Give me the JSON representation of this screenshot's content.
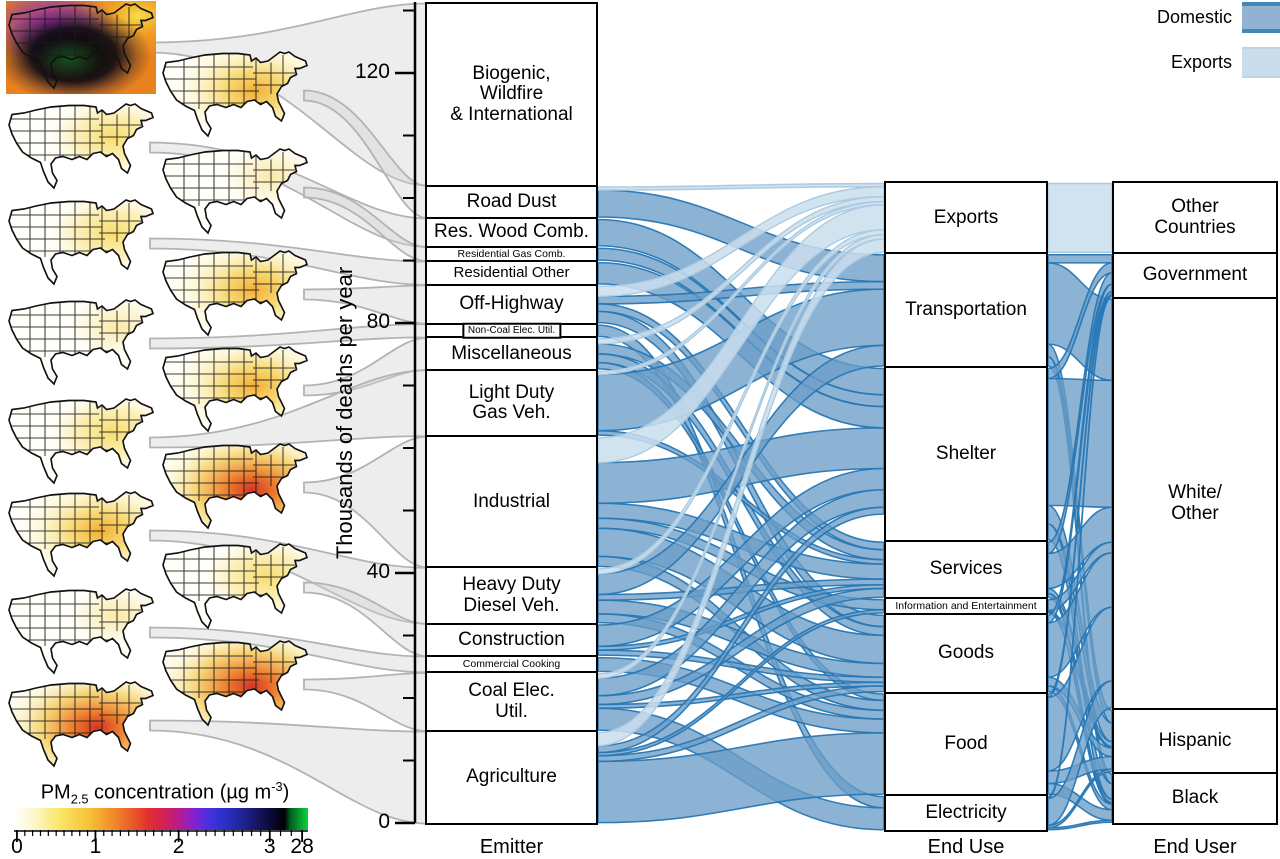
{
  "legend": {
    "items": [
      {
        "label": "Domestic",
        "type": "domestic",
        "color": "#6B9EC8"
      },
      {
        "label": "Exports",
        "type": "exports",
        "color": "#CBDEED"
      }
    ]
  },
  "axis": {
    "label": "Thousands of deaths per year",
    "major_ticks": [
      0,
      40,
      80,
      120
    ],
    "minor_step": 10,
    "max": 130
  },
  "column_labels": {
    "emitter": "Emitter",
    "end_use": "End Use",
    "end_user": "End User"
  },
  "colorbar": {
    "label_plain": "PM2.5 concentration (µg m-3)",
    "label_parts": {
      "prefix": "PM",
      "sub": "2.5",
      "mid": " concentration (µg m",
      "sup": "-3",
      "suffix": ")"
    },
    "ticks": [
      {
        "label": "0",
        "pct": 1
      },
      {
        "label": "1",
        "pct": 27.7
      },
      {
        "label": "2",
        "pct": 56
      },
      {
        "label": "3",
        "pct": 87
      },
      {
        "label": "28",
        "pct": 98
      }
    ]
  },
  "chart_data": {
    "type": "sankey",
    "units": "thousands of deaths per year",
    "ylim": [
      0,
      131
    ],
    "stages": [
      "Emitter",
      "End Use",
      "End User"
    ],
    "emitters": [
      {
        "name": "Biogenic,\nWildfire\n& International",
        "value": 28.8,
        "map_intensity": "saturated"
      },
      {
        "name": "Road Dust",
        "value": 4.8,
        "map_intensity": "medium"
      },
      {
        "name": "Res. Wood Comb.",
        "value": 4.2,
        "map_intensity": "low"
      },
      {
        "name": "Residential Gas Comb.",
        "value": 1.9,
        "map_intensity": "faint"
      },
      {
        "name": "Residential Other",
        "value": 3.4,
        "map_intensity": "low"
      },
      {
        "name": "Off-Highway",
        "value": 5.8,
        "map_intensity": "medium"
      },
      {
        "name": "Non-Coal Elec. Util.",
        "value": 1.8,
        "map_intensity": "faint",
        "label_boxed": true
      },
      {
        "name": "Miscellaneous",
        "value": 4.8,
        "map_intensity": "medium"
      },
      {
        "name": "Light Duty\nGas Veh.",
        "value": 10.2,
        "map_intensity": "low"
      },
      {
        "name": "Industrial",
        "value": 20.6,
        "map_intensity": "high"
      },
      {
        "name": "Heavy Duty\nDiesel Veh.",
        "value": 8.6,
        "map_intensity": "medium"
      },
      {
        "name": "Construction",
        "value": 4.8,
        "map_intensity": "low"
      },
      {
        "name": "Commercial Cooking",
        "value": 2.2,
        "map_intensity": "faint"
      },
      {
        "name": "Coal Elec.\nUtil.",
        "value": 9.0,
        "map_intensity": "high"
      },
      {
        "name": "Agriculture",
        "value": 14.4,
        "map_intensity": "high"
      }
    ],
    "end_uses": [
      {
        "name": "Exports",
        "value": 11.0
      },
      {
        "name": "Transportation",
        "value": 17.8
      },
      {
        "name": "Shelter",
        "value": 27.4
      },
      {
        "name": "Services",
        "value": 8.8
      },
      {
        "name": "Information and Entertainment",
        "value": 2.1
      },
      {
        "name": "Goods",
        "value": 12.2
      },
      {
        "name": "Food",
        "value": 16.0
      },
      {
        "name": "Electricity",
        "value": 5.3
      }
    ],
    "end_users": [
      {
        "name": "Other\nCountries",
        "value": 11.0
      },
      {
        "name": "Government",
        "value": 6.7
      },
      {
        "name": "White/\nOther",
        "value": 65.4
      },
      {
        "name": "Hispanic",
        "value": 9.8
      },
      {
        "name": "Black",
        "value": 7.7
      }
    ],
    "links_stage1": [
      {
        "s": 1,
        "t": 1,
        "v": 4.3,
        "f": "d"
      },
      {
        "s": 1,
        "t": 0,
        "v": 0.5,
        "f": "e"
      },
      {
        "s": 2,
        "t": 2,
        "v": 4.2,
        "f": "d"
      },
      {
        "s": 3,
        "t": 2,
        "v": 1.9,
        "f": "d"
      },
      {
        "s": 4,
        "t": 2,
        "v": 3.4,
        "f": "d"
      },
      {
        "s": 5,
        "t": 1,
        "v": 1.2,
        "f": "d"
      },
      {
        "s": 5,
        "t": 5,
        "v": 1.8,
        "f": "d"
      },
      {
        "s": 5,
        "t": 3,
        "v": 1.2,
        "f": "d"
      },
      {
        "s": 5,
        "t": 0,
        "v": 1.6,
        "f": "e"
      },
      {
        "s": 6,
        "t": 7,
        "v": 1.8,
        "f": "d"
      },
      {
        "s": 7,
        "t": 3,
        "v": 1.6,
        "f": "d"
      },
      {
        "s": 7,
        "t": 5,
        "v": 1.4,
        "f": "d"
      },
      {
        "s": 7,
        "t": 6,
        "v": 1.0,
        "f": "d"
      },
      {
        "s": 7,
        "t": 0,
        "v": 0.8,
        "f": "e"
      },
      {
        "s": 8,
        "t": 1,
        "v": 9.0,
        "f": "d"
      },
      {
        "s": 8,
        "t": 3,
        "v": 0.7,
        "f": "d"
      },
      {
        "s": 8,
        "t": 0,
        "v": 0.5,
        "f": "e"
      },
      {
        "s": 9,
        "t": 2,
        "v": 6.5,
        "f": "d"
      },
      {
        "s": 9,
        "t": 5,
        "v": 4.5,
        "f": "d"
      },
      {
        "s": 9,
        "t": 0,
        "v": 4.0,
        "f": "e"
      },
      {
        "s": 9,
        "t": 3,
        "v": 2.4,
        "f": "d"
      },
      {
        "s": 9,
        "t": 6,
        "v": 1.6,
        "f": "d"
      },
      {
        "s": 9,
        "t": 4,
        "v": 1.6,
        "f": "d"
      },
      {
        "s": 10,
        "t": 1,
        "v": 3.3,
        "f": "d"
      },
      {
        "s": 10,
        "t": 5,
        "v": 2.2,
        "f": "d"
      },
      {
        "s": 10,
        "t": 6,
        "v": 1.4,
        "f": "d"
      },
      {
        "s": 10,
        "t": 3,
        "v": 0.9,
        "f": "d"
      },
      {
        "s": 10,
        "t": 0,
        "v": 0.8,
        "f": "e"
      },
      {
        "s": 11,
        "t": 2,
        "v": 3.4,
        "f": "d"
      },
      {
        "s": 11,
        "t": 5,
        "v": 0.8,
        "f": "d"
      },
      {
        "s": 11,
        "t": 3,
        "v": 0.6,
        "f": "d"
      },
      {
        "s": 12,
        "t": 6,
        "v": 2.2,
        "f": "d"
      },
      {
        "s": 13,
        "t": 7,
        "v": 3.5,
        "f": "d"
      },
      {
        "s": 13,
        "t": 2,
        "v": 2.8,
        "f": "d"
      },
      {
        "s": 13,
        "t": 3,
        "v": 1.4,
        "f": "d"
      },
      {
        "s": 13,
        "t": 5,
        "v": 0.6,
        "f": "d"
      },
      {
        "s": 13,
        "t": 0,
        "v": 0.7,
        "f": "e"
      },
      {
        "s": 14,
        "t": 6,
        "v": 9.8,
        "f": "d"
      },
      {
        "s": 14,
        "t": 0,
        "v": 2.1,
        "f": "e"
      },
      {
        "s": 14,
        "t": 5,
        "v": 0.9,
        "f": "d"
      },
      {
        "s": 14,
        "t": 2,
        "v": 1.1,
        "f": "d"
      },
      {
        "s": 14,
        "t": 4,
        "v": 0.5,
        "f": "d"
      }
    ],
    "links_stage2": [
      {
        "s": 0,
        "t": 0,
        "v": 11.0,
        "f": "e"
      },
      {
        "s": 1,
        "t": 1,
        "v": 1.3,
        "f": "d"
      },
      {
        "s": 1,
        "t": 2,
        "v": 13.0,
        "f": "d"
      },
      {
        "s": 1,
        "t": 3,
        "v": 2.0,
        "f": "d"
      },
      {
        "s": 1,
        "t": 4,
        "v": 1.5,
        "f": "d"
      },
      {
        "s": 2,
        "t": 1,
        "v": 1.6,
        "f": "d"
      },
      {
        "s": 2,
        "t": 2,
        "v": 20.3,
        "f": "d"
      },
      {
        "s": 2,
        "t": 3,
        "v": 3.0,
        "f": "d"
      },
      {
        "s": 2,
        "t": 4,
        "v": 2.5,
        "f": "d"
      },
      {
        "s": 3,
        "t": 1,
        "v": 1.8,
        "f": "d"
      },
      {
        "s": 3,
        "t": 2,
        "v": 5.6,
        "f": "d"
      },
      {
        "s": 3,
        "t": 3,
        "v": 0.8,
        "f": "d"
      },
      {
        "s": 3,
        "t": 4,
        "v": 0.6,
        "f": "d"
      },
      {
        "s": 4,
        "t": 2,
        "v": 1.7,
        "f": "d"
      },
      {
        "s": 4,
        "t": 3,
        "v": 0.2,
        "f": "d"
      },
      {
        "s": 4,
        "t": 4,
        "v": 0.2,
        "f": "d"
      },
      {
        "s": 5,
        "t": 1,
        "v": 1.2,
        "f": "d"
      },
      {
        "s": 5,
        "t": 2,
        "v": 8.7,
        "f": "d"
      },
      {
        "s": 5,
        "t": 3,
        "v": 1.4,
        "f": "d"
      },
      {
        "s": 5,
        "t": 4,
        "v": 0.9,
        "f": "d"
      },
      {
        "s": 6,
        "t": 1,
        "v": 0.5,
        "f": "d"
      },
      {
        "s": 6,
        "t": 2,
        "v": 11.8,
        "f": "d"
      },
      {
        "s": 6,
        "t": 3,
        "v": 2.0,
        "f": "d"
      },
      {
        "s": 6,
        "t": 4,
        "v": 1.7,
        "f": "d"
      },
      {
        "s": 7,
        "t": 1,
        "v": 0.3,
        "f": "d"
      },
      {
        "s": 7,
        "t": 2,
        "v": 4.3,
        "f": "d"
      },
      {
        "s": 7,
        "t": 3,
        "v": 0.4,
        "f": "d"
      },
      {
        "s": 7,
        "t": 4,
        "v": 0.3,
        "f": "d"
      }
    ]
  }
}
